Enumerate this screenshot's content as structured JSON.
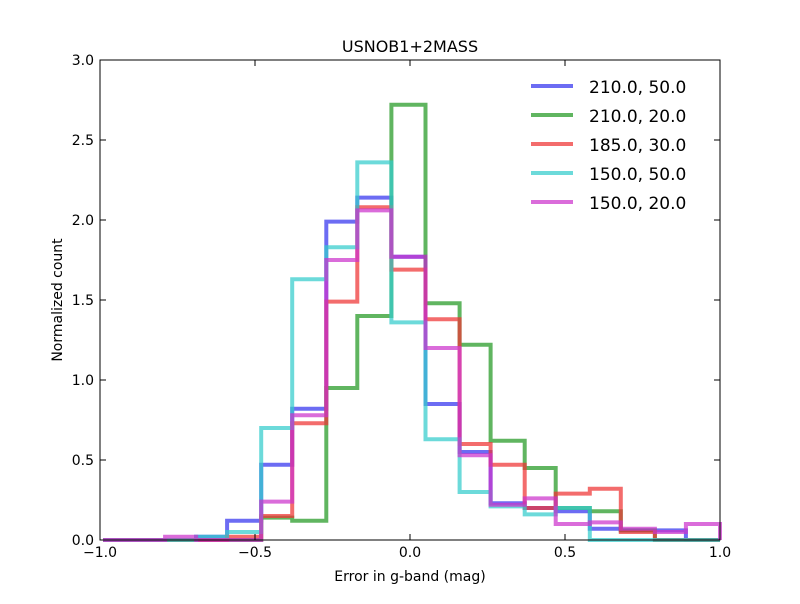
{
  "chart_data": {
    "type": "line",
    "title": "USNOB1+2MASS",
    "xlabel": "Error in g-band (mag)",
    "ylabel": "Normalized count",
    "xlim": [
      -1.0,
      1.0
    ],
    "ylim": [
      0.0,
      3.0
    ],
    "x_ticks": [
      "−1.0",
      "−0.5",
      "0.0",
      "0.5",
      "1.0"
    ],
    "y_ticks": [
      "0.0",
      "0.5",
      "1.0",
      "1.5",
      "2.0",
      "2.5",
      "3.0"
    ],
    "grid": false,
    "legend_position": "top-right",
    "bin_edges": [
      -0.99,
      -0.89,
      -0.79,
      -0.69,
      -0.59,
      -0.48,
      -0.38,
      -0.27,
      -0.17,
      -0.06,
      0.05,
      0.16,
      0.26,
      0.37,
      0.47,
      0.58,
      0.68,
      0.79,
      0.89,
      1.0
    ],
    "series": [
      {
        "name": "210.0, 50.0",
        "color": "#3333ee",
        "values": [
          0,
          0,
          0,
          0.02,
          0.12,
          0.47,
          0.82,
          1.99,
          2.14,
          1.77,
          0.85,
          0.55,
          0.23,
          0.2,
          0.18,
          0.07,
          0.06,
          0.06,
          0.0
        ]
      },
      {
        "name": "210.0, 20.0",
        "color": "#229922",
        "values": [
          0,
          0,
          0,
          0,
          0,
          0.14,
          0.12,
          0.95,
          1.4,
          2.72,
          1.48,
          1.22,
          0.62,
          0.45,
          0.2,
          0.18,
          0.06,
          0.0,
          0.0
        ]
      },
      {
        "name": "185.0, 30.0",
        "color": "#ee3333",
        "values": [
          0,
          0,
          0,
          0,
          0.02,
          0.15,
          0.73,
          1.49,
          2.08,
          1.69,
          1.38,
          0.6,
          0.47,
          0.2,
          0.29,
          0.32,
          0.05,
          0.0,
          0.0
        ]
      },
      {
        "name": "150.0, 50.0",
        "color": "#33cccc",
        "values": [
          0,
          0,
          0,
          0.02,
          0.05,
          0.7,
          1.63,
          1.83,
          2.36,
          1.36,
          0.63,
          0.3,
          0.21,
          0.16,
          0.2,
          0.0,
          0.0,
          0.0,
          0.0
        ]
      },
      {
        "name": "150.0, 20.0",
        "color": "#cc33cc",
        "values": [
          0,
          0,
          0.02,
          0,
          0,
          0.24,
          0.78,
          1.75,
          2.06,
          1.77,
          1.2,
          0.53,
          0.22,
          0.26,
          0.1,
          0.11,
          0.07,
          0.05,
          0.1
        ]
      }
    ]
  }
}
